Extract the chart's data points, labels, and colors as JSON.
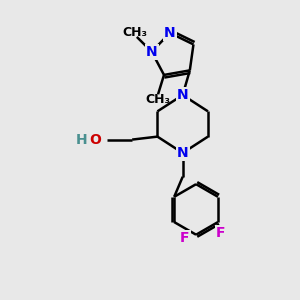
{
  "background_color": "#e8e8e8",
  "bond_color": "#000000",
  "bond_width": 1.8,
  "atom_colors": {
    "N": "#0000ee",
    "O": "#cc0000",
    "F": "#cc00cc",
    "C": "#000000",
    "H": "#4a9090"
  },
  "font_size_atoms": 10,
  "font_size_small": 9
}
